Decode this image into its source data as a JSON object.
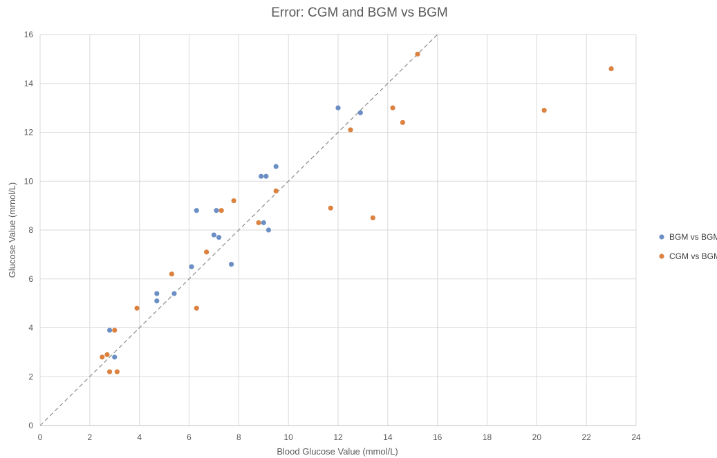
{
  "chart_data": {
    "type": "scatter",
    "title": "Error: CGM and BGM vs BGM",
    "xlabel": "Blood Glucose Value (mmol/L)",
    "ylabel": "Glucose Value (mmol/L)",
    "xlim": [
      0,
      24
    ],
    "ylim": [
      0,
      16
    ],
    "x_ticks": [
      "0",
      "2",
      "4",
      "6",
      "8",
      "10",
      "12",
      "14",
      "16",
      "18",
      "20",
      "22",
      "24"
    ],
    "y_ticks": [
      "0",
      "2",
      "4",
      "6",
      "8",
      "10",
      "12",
      "14",
      "16"
    ],
    "grid": true,
    "legend_position": "right",
    "reference_line": {
      "style": "dashed",
      "from": [
        0,
        0
      ],
      "to": [
        16,
        16
      ],
      "color": "#8c8c8c"
    },
    "series": [
      {
        "name": "BGM vs BGM",
        "color": "#6b8fc4",
        "points": [
          [
            2.8,
            3.9
          ],
          [
            3.0,
            2.8
          ],
          [
            4.7,
            5.4
          ],
          [
            4.7,
            5.1
          ],
          [
            5.4,
            5.4
          ],
          [
            6.1,
            6.5
          ],
          [
            6.3,
            8.8
          ],
          [
            7.0,
            7.8
          ],
          [
            7.1,
            8.8
          ],
          [
            7.2,
            7.7
          ],
          [
            7.7,
            6.6
          ],
          [
            8.9,
            10.2
          ],
          [
            9.0,
            8.3
          ],
          [
            9.1,
            10.2
          ],
          [
            9.2,
            8.0
          ],
          [
            9.5,
            10.6
          ],
          [
            12.0,
            13.0
          ],
          [
            12.9,
            12.8
          ]
        ]
      },
      {
        "name": "CGM vs BGM",
        "color": "#dc8240",
        "points": [
          [
            2.5,
            2.8
          ],
          [
            2.7,
            2.9
          ],
          [
            2.8,
            2.2
          ],
          [
            3.0,
            3.9
          ],
          [
            3.1,
            2.2
          ],
          [
            3.9,
            4.8
          ],
          [
            5.3,
            6.2
          ],
          [
            6.3,
            4.8
          ],
          [
            6.7,
            7.1
          ],
          [
            7.3,
            8.8
          ],
          [
            7.8,
            9.2
          ],
          [
            8.8,
            8.3
          ],
          [
            9.5,
            9.6
          ],
          [
            11.7,
            8.9
          ],
          [
            12.5,
            12.1
          ],
          [
            13.4,
            8.5
          ],
          [
            14.2,
            13.0
          ],
          [
            14.6,
            12.4
          ],
          [
            15.2,
            15.2
          ],
          [
            20.3,
            12.9
          ],
          [
            23.0,
            14.6
          ]
        ]
      }
    ]
  }
}
